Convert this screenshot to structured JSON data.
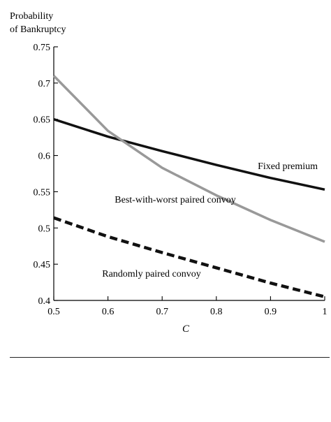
{
  "chart_data": {
    "type": "line",
    "ylabel_lines": [
      "Probability",
      "of Bankruptcy"
    ],
    "xlabel": "C",
    "xlim": [
      0.5,
      1.0
    ],
    "ylim": [
      0.4,
      0.75
    ],
    "x_ticks": [
      "0.5",
      "0.6",
      "0.7",
      "0.8",
      "0.9",
      "1"
    ],
    "x_tick_values": [
      0.5,
      0.6,
      0.7,
      0.8,
      0.9,
      1.0
    ],
    "y_ticks": [
      "0.4",
      "0.45",
      "0.5",
      "0.55",
      "0.6",
      "0.65",
      "0.7",
      "0.75"
    ],
    "y_tick_values": [
      0.4,
      0.45,
      0.5,
      0.55,
      0.6,
      0.65,
      0.7,
      0.75
    ],
    "grid": false,
    "legend": "inline labels",
    "series": [
      {
        "name": "Fixed premium",
        "style": "solid",
        "color": "#111111",
        "x": [
          0.5,
          0.6,
          0.7,
          0.8,
          0.9,
          1.0
        ],
        "y": [
          0.65,
          0.626,
          0.606,
          0.587,
          0.569,
          0.553
        ]
      },
      {
        "name": "Best-with-worst paired convoy",
        "style": "solid",
        "color": "#999999",
        "x": [
          0.5,
          0.6,
          0.7,
          0.8,
          0.9,
          1.0
        ],
        "y": [
          0.71,
          0.634,
          0.583,
          0.545,
          0.511,
          0.481
        ]
      },
      {
        "name": "Randomly paired convoy",
        "style": "dashed",
        "color": "#111111",
        "x": [
          0.5,
          0.6,
          0.7,
          0.8,
          0.9,
          1.0
        ],
        "y": [
          0.514,
          0.488,
          0.466,
          0.445,
          0.424,
          0.405
        ]
      }
    ]
  }
}
